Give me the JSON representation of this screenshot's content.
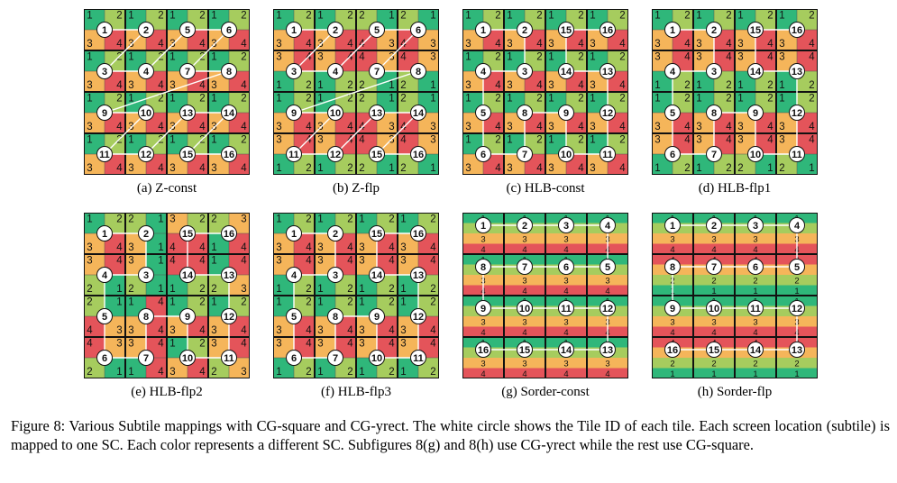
{
  "colors": {
    "1": "#2fb77a",
    "2": "#a6cc5e",
    "3": "#f5b55a",
    "4": "#e4545a"
  },
  "panels": [
    {
      "id": "a",
      "caption": "(a) Z-const",
      "kind": "grid",
      "cells": [
        "12121212",
        "34343434",
        "12121212",
        "34343434",
        "12121212",
        "34343434",
        "12121212",
        "34343434"
      ],
      "tiles": [
        1,
        2,
        5,
        6,
        3,
        4,
        7,
        8,
        9,
        10,
        13,
        14,
        11,
        12,
        15,
        16
      ]
    },
    {
      "id": "b",
      "caption": "(b) Z-flp",
      "kind": "grid",
      "cells": [
        "12122121",
        "34344343",
        "34344343",
        "12122121",
        "12122121",
        "34344343",
        "34344343",
        "12122121"
      ],
      "tiles": [
        1,
        2,
        5,
        6,
        3,
        4,
        7,
        8,
        9,
        10,
        13,
        14,
        11,
        12,
        15,
        16
      ]
    },
    {
      "id": "c",
      "caption": "(c) HLB-const",
      "kind": "grid",
      "cells": [
        "12121212",
        "34343434",
        "12121212",
        "34343434",
        "12121212",
        "34343434",
        "12121212",
        "34343434"
      ],
      "tiles": [
        1,
        2,
        15,
        16,
        4,
        3,
        14,
        13,
        5,
        8,
        9,
        12,
        6,
        7,
        10,
        11
      ]
    },
    {
      "id": "d",
      "caption": "(d) HLB-flp1",
      "kind": "grid",
      "cells": [
        "12121212",
        "34343434",
        "34343434",
        "12121212",
        "12121212",
        "34343434",
        "34343434",
        "12122121"
      ],
      "tiles": [
        1,
        2,
        15,
        16,
        4,
        3,
        14,
        13,
        5,
        8,
        9,
        12,
        6,
        7,
        10,
        11
      ]
    },
    {
      "id": "e",
      "caption": "(e) HLB-flp2",
      "kind": "grid",
      "cells": [
        "12213223",
        "34314414",
        "34314414",
        "21211223",
        "21141212",
        "43343434",
        "43341234",
        "21143423"
      ],
      "tiles": [
        1,
        2,
        15,
        16,
        4,
        3,
        14,
        13,
        5,
        8,
        9,
        12,
        6,
        7,
        10,
        11
      ]
    },
    {
      "id": "f",
      "caption": "(f) HLB-flp3",
      "kind": "grid",
      "cells": [
        "12121212",
        "34343434",
        "34343434",
        "12121212",
        "12121212",
        "34343434",
        "34343434",
        "12121212"
      ],
      "tiles": [
        1,
        2,
        15,
        16,
        4,
        3,
        14,
        13,
        5,
        8,
        9,
        12,
        6,
        7,
        10,
        11
      ]
    },
    {
      "id": "g",
      "caption": "(g) Sorder-const",
      "kind": "strips",
      "strips": [
        "1",
        "2",
        "3",
        "4",
        "1",
        "2",
        "3",
        "4",
        "1",
        "2",
        "3",
        "4",
        "1",
        "2",
        "3",
        "4"
      ],
      "tiles": [
        1,
        2,
        3,
        4,
        8,
        7,
        6,
        5,
        9,
        10,
        11,
        12,
        16,
        15,
        14,
        13
      ]
    },
    {
      "id": "h",
      "caption": "(h) Sorder-flp",
      "kind": "strips",
      "strips": [
        "1",
        "2",
        "3",
        "4",
        "4",
        "3",
        "2",
        "1",
        "1",
        "2",
        "3",
        "4",
        "4",
        "3",
        "2",
        "1"
      ],
      "tiles": [
        1,
        2,
        3,
        4,
        8,
        7,
        6,
        5,
        9,
        10,
        11,
        12,
        16,
        15,
        14,
        13
      ]
    }
  ],
  "figure_caption": "Figure 8: Various Subtile mappings with CG-square and CG-yrect. The white circle shows the Tile ID of each tile. Each screen location (subtile) is mapped to one SC. Each color represents a different SC. Subfigures 8(g) and 8(h) use CG-yrect while the rest use CG-square."
}
